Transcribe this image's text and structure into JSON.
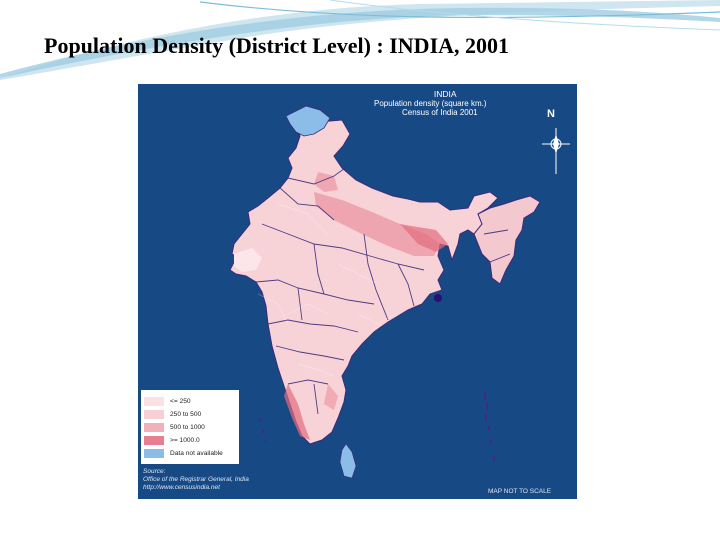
{
  "slide": {
    "title": "Population Density (District Level) : INDIA, 2001"
  },
  "map": {
    "header_title": "INDIA",
    "header_subtitle": "Population density (square km.)",
    "header_census": "Census of India 2001",
    "north_label": "N",
    "scale_note": "MAP NOT TO SCALE",
    "colors": {
      "ocean": "#174a84",
      "land_low": "#fbe1e4",
      "land_mid": "#f4bfc7",
      "land_high": "#ec9aa6",
      "land_very_high": "#e36c7e",
      "not_available": "#8cbde8",
      "state_border": "#2a1a6e"
    }
  },
  "legend": {
    "items": [
      {
        "label": "<= 250",
        "color": "#fbe1e4"
      },
      {
        "label": "250 to 500",
        "color": "#f7cfd5"
      },
      {
        "label": "500 to 1000",
        "color": "#f1b1bb"
      },
      {
        "label": ">= 1000.0",
        "color": "#e87e8f"
      },
      {
        "label": "Data not available",
        "color": "#8cbde8"
      }
    ]
  },
  "source": {
    "label": "Source:",
    "line1": "Office of the Registrar General, India",
    "line2": "http://www.censusindia.net"
  }
}
